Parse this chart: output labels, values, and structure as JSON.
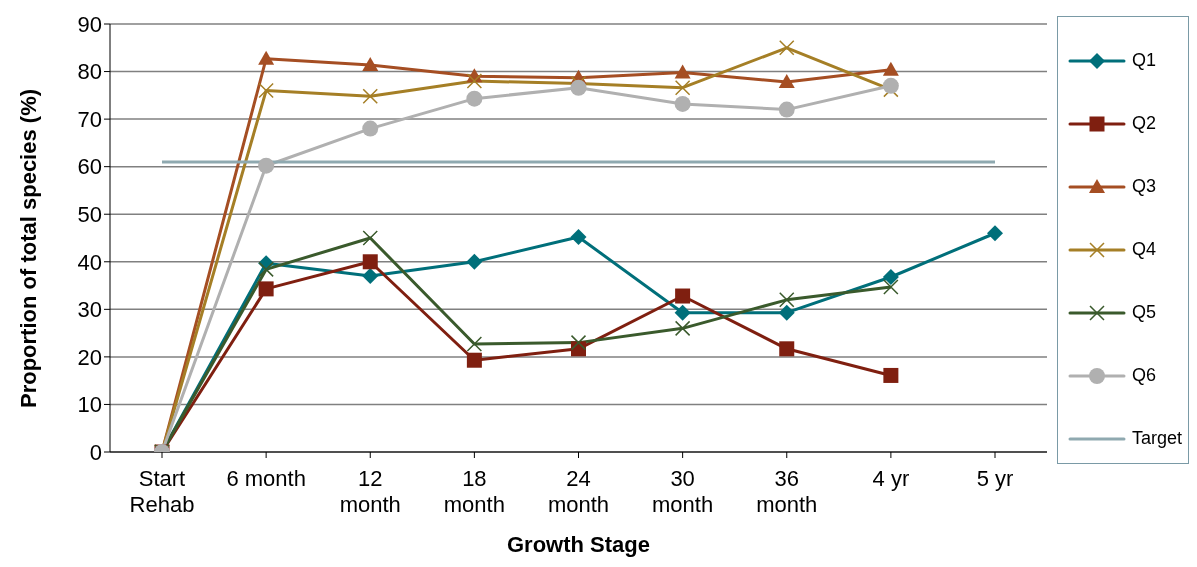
{
  "chart_data": {
    "type": "line",
    "xlabel": "Growth Stage",
    "ylabel": "Proportion of total species (%)",
    "categories": [
      "Start\nRehab",
      "6 month",
      "12\nmonth",
      "18\nmonth",
      "24\nmonth",
      "30\nmonth",
      "36\nmonth",
      "4 yr",
      "5 yr"
    ],
    "series": [
      {
        "name": "Q1",
        "color": "#006f7a",
        "marker": "diamond",
        "values": [
          0,
          39.7,
          37,
          40,
          45.2,
          29.3,
          29.3,
          36.8,
          46
        ]
      },
      {
        "name": "Q2",
        "color": "#7f1f10",
        "marker": "square",
        "values": [
          0,
          34.3,
          40,
          19.3,
          21.7,
          32.8,
          21.7,
          16.1,
          null
        ]
      },
      {
        "name": "Q3",
        "color": "#a54e23",
        "marker": "triangle",
        "values": [
          0,
          82.7,
          81.4,
          79,
          78.7,
          79.8,
          77.8,
          80.4,
          null
        ]
      },
      {
        "name": "Q4",
        "color": "#a57f26",
        "marker": "cross",
        "values": [
          0,
          76,
          74.8,
          78,
          77.5,
          76.6,
          85,
          76.2,
          null
        ]
      },
      {
        "name": "Q5",
        "color": "#3a5a2c",
        "marker": "cross",
        "values": [
          0,
          38.4,
          45,
          22.7,
          23,
          26,
          32,
          34.7,
          null
        ]
      },
      {
        "name": "Q6",
        "color": "#b0b0b0",
        "marker": "circle",
        "values": [
          0,
          60.2,
          68,
          74.3,
          76.6,
          73.2,
          72,
          77,
          null
        ]
      },
      {
        "name": "Target",
        "color": "#8fa9b0",
        "marker": "none",
        "values": [
          61,
          61,
          61,
          61,
          61,
          61,
          61,
          61,
          61
        ]
      }
    ],
    "ylim": [
      0,
      90
    ],
    "yticks": [
      0,
      10,
      20,
      30,
      40,
      50,
      60,
      70,
      80,
      90
    ],
    "grid": "y",
    "legend": "right"
  }
}
